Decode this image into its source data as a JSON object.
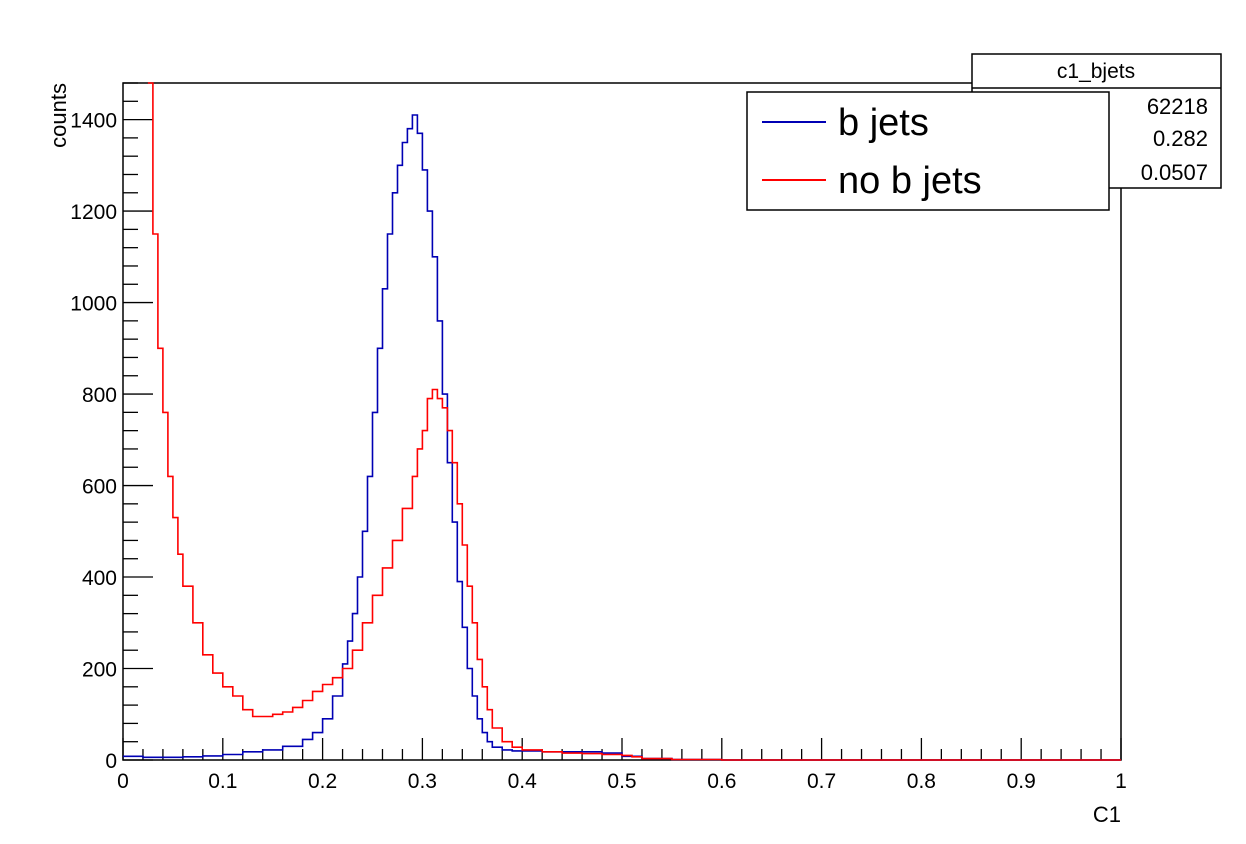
{
  "chart_data": {
    "type": "line",
    "xlabel": "C1",
    "ylabel": "counts",
    "xlim": [
      0,
      1
    ],
    "ylim": [
      0,
      1480
    ],
    "grid": false,
    "x_ticks": [
      "0",
      "0.1",
      "0.2",
      "0.3",
      "0.4",
      "0.5",
      "0.6",
      "0.7",
      "0.8",
      "0.9",
      "1"
    ],
    "y_ticks": [
      "0",
      "200",
      "400",
      "600",
      "800",
      "1000",
      "1200",
      "1400"
    ],
    "legend_position": "top-right",
    "series": [
      {
        "name": "b jets",
        "color": "#0000b4",
        "style": "step",
        "x": [
          0.0,
          0.02,
          0.04,
          0.06,
          0.08,
          0.1,
          0.12,
          0.14,
          0.16,
          0.18,
          0.19,
          0.2,
          0.21,
          0.22,
          0.225,
          0.23,
          0.235,
          0.24,
          0.245,
          0.25,
          0.255,
          0.26,
          0.265,
          0.27,
          0.275,
          0.28,
          0.285,
          0.29,
          0.295,
          0.3,
          0.305,
          0.31,
          0.315,
          0.32,
          0.325,
          0.33,
          0.335,
          0.34,
          0.345,
          0.35,
          0.355,
          0.36,
          0.365,
          0.37,
          0.38,
          0.39,
          0.4,
          0.42,
          0.44,
          0.46,
          0.48,
          0.5,
          0.52,
          0.55,
          0.6,
          0.7,
          0.8,
          0.9,
          1.0
        ],
        "y": [
          8,
          6,
          6,
          7,
          9,
          12,
          18,
          22,
          30,
          45,
          60,
          90,
          140,
          210,
          260,
          320,
          400,
          500,
          620,
          760,
          900,
          1030,
          1150,
          1240,
          1300,
          1350,
          1380,
          1410,
          1370,
          1290,
          1200,
          1100,
          960,
          800,
          650,
          520,
          390,
          290,
          200,
          140,
          90,
          60,
          40,
          28,
          22,
          20,
          20,
          18,
          18,
          18,
          15,
          8,
          3,
          1,
          0,
          0,
          0,
          0,
          0
        ]
      },
      {
        "name": "no b jets",
        "color": "#ff0000",
        "style": "step",
        "x": [
          0.025,
          0.03,
          0.035,
          0.04,
          0.045,
          0.05,
          0.055,
          0.06,
          0.07,
          0.08,
          0.09,
          0.1,
          0.11,
          0.12,
          0.13,
          0.14,
          0.15,
          0.16,
          0.17,
          0.18,
          0.19,
          0.2,
          0.21,
          0.22,
          0.23,
          0.24,
          0.25,
          0.26,
          0.27,
          0.28,
          0.29,
          0.295,
          0.3,
          0.305,
          0.31,
          0.315,
          0.32,
          0.325,
          0.33,
          0.335,
          0.34,
          0.345,
          0.35,
          0.355,
          0.36,
          0.365,
          0.37,
          0.38,
          0.39,
          0.4,
          0.42,
          0.44,
          0.46,
          0.48,
          0.5,
          0.51,
          0.52,
          0.55,
          0.6,
          0.7,
          0.8,
          0.9,
          1.0
        ],
        "y": [
          1480,
          1150,
          900,
          760,
          620,
          530,
          450,
          380,
          300,
          230,
          190,
          160,
          140,
          110,
          95,
          95,
          100,
          105,
          115,
          130,
          150,
          165,
          180,
          200,
          240,
          300,
          360,
          420,
          480,
          550,
          620,
          680,
          720,
          790,
          810,
          790,
          770,
          720,
          650,
          560,
          470,
          380,
          300,
          220,
          160,
          110,
          70,
          40,
          28,
          22,
          18,
          15,
          14,
          12,
          10,
          7,
          3,
          1,
          0,
          0,
          0,
          0,
          0
        ]
      }
    ],
    "stats_box": {
      "title": "c1_bjets",
      "values": [
        "62218",
        "0.282",
        "0.0507"
      ]
    }
  }
}
